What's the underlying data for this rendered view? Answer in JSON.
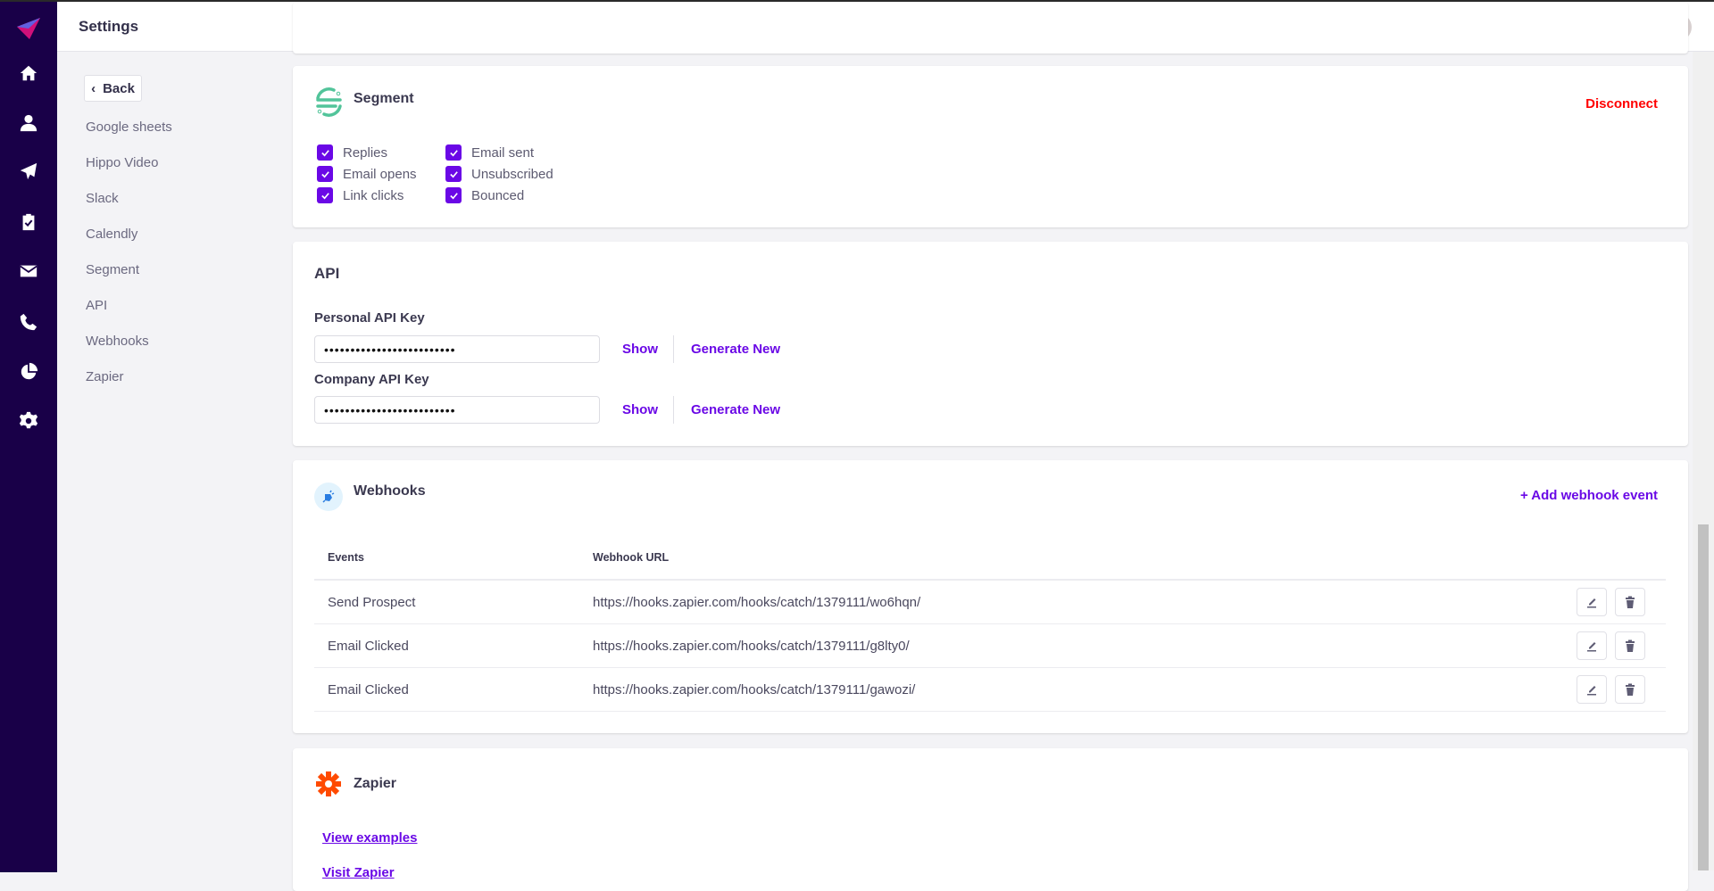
{
  "header": {
    "title": "Settings"
  },
  "sidebar": {
    "icons": [
      "logo-icon",
      "home-icon",
      "user-icon",
      "send-icon",
      "clipboard-check-icon",
      "mail-icon",
      "phone-icon",
      "pie-chart-icon",
      "gear-icon"
    ]
  },
  "left_nav": {
    "back_label": "Back",
    "items": [
      "Google sheets",
      "Hippo Video",
      "Slack",
      "Calendly",
      "Segment",
      "API",
      "Webhooks",
      "Zapier"
    ]
  },
  "segment": {
    "title": "Segment",
    "disconnect_label": "Disconnect",
    "options": [
      {
        "label": "Replies",
        "checked": true
      },
      {
        "label": "Email opens",
        "checked": true
      },
      {
        "label": "Link clicks",
        "checked": true
      },
      {
        "label": "Email sent",
        "checked": true
      },
      {
        "label": "Unsubscribed",
        "checked": true
      },
      {
        "label": "Bounced",
        "checked": true
      }
    ]
  },
  "api": {
    "title": "API",
    "personal": {
      "label": "Personal API Key",
      "value": "•••••••••••••••••••••••••"
    },
    "company": {
      "label": "Company API Key",
      "value": "•••••••••••••••••••••••••"
    },
    "show_label": "Show",
    "generate_label": "Generate New"
  },
  "webhooks": {
    "title": "Webhooks",
    "add_label": "+ Add webhook event",
    "columns": [
      "Events",
      "Webhook URL"
    ],
    "rows": [
      {
        "event": "Send Prospect",
        "url": "https://hooks.zapier.com/hooks/catch/1379111/wo6hqn/"
      },
      {
        "event": "Email Clicked",
        "url": "https://hooks.zapier.com/hooks/catch/1379111/g8lty0/"
      },
      {
        "event": "Email Clicked",
        "url": "https://hooks.zapier.com/hooks/catch/1379111/gawozi/"
      }
    ]
  },
  "zapier": {
    "title": "Zapier",
    "view_examples": "View examples",
    "visit": "Visit Zapier"
  },
  "colors": {
    "sidebar": "#190048",
    "accent": "#6a08e6",
    "danger": "#ff0000"
  }
}
